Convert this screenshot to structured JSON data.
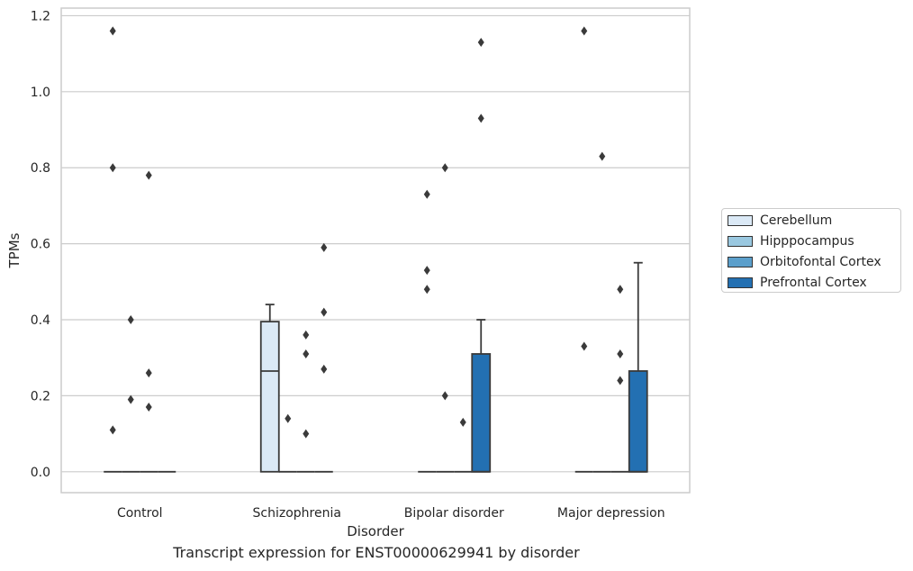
{
  "caption": "Transcript expression for ENST00000629941 by disorder",
  "colors": {
    "Cerebellum": "#dbe9f6",
    "Hipppocampus": "#9ac8e0",
    "Orbitofontal Cortex": "#5b9fcb",
    "Prefrontal Cortex": "#2370b2",
    "grid": "#cccccc",
    "axes_edge": "#cccccc",
    "box_edge": "#3a3a3a",
    "outlier": "#3a3a3a"
  },
  "legend": {
    "placement": "right",
    "items": [
      "Cerebellum",
      "Hipppocampus",
      "Orbitofontal Cortex",
      "Prefrontal Cortex"
    ]
  },
  "chart_data": {
    "type": "box",
    "title": "",
    "xlabel": "Disorder",
    "ylabel": "TPMs",
    "ylim": [
      -0.055,
      1.22
    ],
    "yticks": [
      "0.0",
      "0.2",
      "0.4",
      "0.6",
      "0.8",
      "1.0",
      "1.2"
    ],
    "grid": "horizontal",
    "categories": [
      "Control",
      "Schizophrenia",
      "Bipolar disorder",
      "Major depression"
    ],
    "series": [
      {
        "name": "Cerebellum",
        "boxes": [
          {
            "q1": 0,
            "median": 0,
            "q3": 0,
            "whisker_low": 0,
            "whisker_high": 0,
            "outliers": [
              0.11,
              0.8,
              1.16
            ]
          },
          {
            "q1": 0,
            "median": 0.265,
            "q3": 0.395,
            "whisker_low": 0,
            "whisker_high": 0.44,
            "outliers": []
          },
          {
            "q1": 0,
            "median": 0,
            "q3": 0,
            "whisker_low": 0,
            "whisker_high": 0,
            "outliers": [
              0.48,
              0.53,
              0.73
            ]
          },
          {
            "q1": 0,
            "median": 0,
            "q3": 0,
            "whisker_low": 0,
            "whisker_high": 0,
            "outliers": [
              0.33,
              1.16
            ]
          }
        ]
      },
      {
        "name": "Hipppocampus",
        "boxes": [
          {
            "q1": 0,
            "median": 0,
            "q3": 0,
            "whisker_low": 0,
            "whisker_high": 0,
            "outliers": [
              0.19,
              0.4
            ]
          },
          {
            "q1": 0,
            "median": 0,
            "q3": 0,
            "whisker_low": 0,
            "whisker_high": 0,
            "outliers": [
              0.14
            ]
          },
          {
            "q1": 0,
            "median": 0,
            "q3": 0,
            "whisker_low": 0,
            "whisker_high": 0,
            "outliers": [
              0.2,
              0.8
            ]
          },
          {
            "q1": 0,
            "median": 0,
            "q3": 0,
            "whisker_low": 0,
            "whisker_high": 0,
            "outliers": [
              0.83
            ]
          }
        ]
      },
      {
        "name": "Orbitofontal Cortex",
        "boxes": [
          {
            "q1": 0,
            "median": 0,
            "q3": 0,
            "whisker_low": 0,
            "whisker_high": 0,
            "outliers": [
              0.17,
              0.26,
              0.78
            ]
          },
          {
            "q1": 0,
            "median": 0,
            "q3": 0,
            "whisker_low": 0,
            "whisker_high": 0,
            "outliers": [
              0.1,
              0.31,
              0.36
            ]
          },
          {
            "q1": 0,
            "median": 0,
            "q3": 0,
            "whisker_low": 0,
            "whisker_high": 0,
            "outliers": [
              0.13
            ]
          },
          {
            "q1": 0,
            "median": 0,
            "q3": 0,
            "whisker_low": 0,
            "whisker_high": 0,
            "outliers": [
              0.24,
              0.31,
              0.48
            ]
          }
        ]
      },
      {
        "name": "Prefrontal Cortex",
        "boxes": [
          {
            "q1": 0,
            "median": 0,
            "q3": 0,
            "whisker_low": 0,
            "whisker_high": 0,
            "outliers": []
          },
          {
            "q1": 0,
            "median": 0,
            "q3": 0,
            "whisker_low": 0,
            "whisker_high": 0,
            "outliers": [
              0.27,
              0.42,
              0.59
            ]
          },
          {
            "q1": 0,
            "median": 0,
            "q3": 0.31,
            "whisker_low": 0,
            "whisker_high": 0.4,
            "outliers": [
              0.93,
              1.13
            ]
          },
          {
            "q1": 0,
            "median": 0,
            "q3": 0.265,
            "whisker_low": 0,
            "whisker_high": 0.55,
            "outliers": []
          }
        ]
      }
    ]
  }
}
